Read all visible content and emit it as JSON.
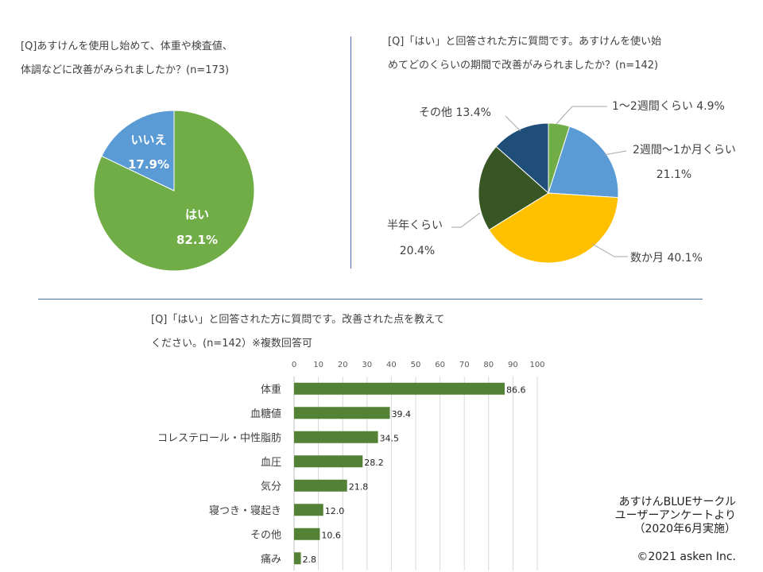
{
  "q1": {
    "line1": "[Q]あすけんを使用し始めて、体重や検査値、",
    "line2": "体調などに改善がみられましたか？(n=173)"
  },
  "q2": {
    "line1": "[Q]「はい」と回答された方に質問です。あすけんを使い始",
    "line2": "めてどのくらいの期間で改善がみられましたか？(n=142)"
  },
  "q3": {
    "line1": "[Q]「はい」と回答された方に質問です。改善された点を教えて",
    "line2": "ください。(n=142）※複数回答可"
  },
  "source": {
    "line1": "あすけんBLUEサークル",
    "line2": "ユーザーアンケートより",
    "line3": "（2020年6月実施）"
  },
  "copyright": "©2021 asken Inc.",
  "colors": {
    "green": "#70AD47",
    "blue": "#5B9BD5",
    "yellow": "#FFC000",
    "darkgreen": "#375623",
    "darkblue": "#1F4E79",
    "bar": "#538135"
  },
  "chart_data": [
    {
      "type": "pie",
      "labels": [
        "はい",
        "いいえ"
      ],
      "values": [
        82.1,
        17.9
      ],
      "value_labels": [
        "82.1%",
        "17.9%"
      ],
      "colors": [
        "#70AD47",
        "#5B9BD5"
      ]
    },
    {
      "type": "pie",
      "labels": [
        "1〜2週間くらい",
        "2週間〜1か月くらい",
        "数か月",
        "半年くらい",
        "その他"
      ],
      "values": [
        4.9,
        21.1,
        40.1,
        20.4,
        13.4
      ],
      "value_labels": [
        "4.9%",
        "21.1%",
        "40.1%",
        "20.4%",
        "13.4%"
      ],
      "colors": [
        "#70AD47",
        "#5B9BD5",
        "#FFC000",
        "#375623",
        "#1F4E79"
      ]
    },
    {
      "type": "bar",
      "orientation": "horizontal",
      "categories": [
        "体重",
        "血糖値",
        "コレステロール・中性脂肪",
        "血圧",
        "気分",
        "寝つき・寝起き",
        "その他",
        "痛み"
      ],
      "values": [
        86.6,
        39.4,
        34.5,
        28.2,
        21.8,
        12.0,
        10.6,
        2.8
      ],
      "value_labels": [
        "86.6",
        "39.4",
        "34.5",
        "28.2",
        "21.8",
        "12.0",
        "10.6",
        "2.8"
      ],
      "xlim": [
        0,
        100
      ],
      "xticks": [
        "0",
        "10",
        "20",
        "30",
        "40",
        "50",
        "60",
        "70",
        "80",
        "90",
        "100"
      ],
      "color": "#538135"
    }
  ]
}
